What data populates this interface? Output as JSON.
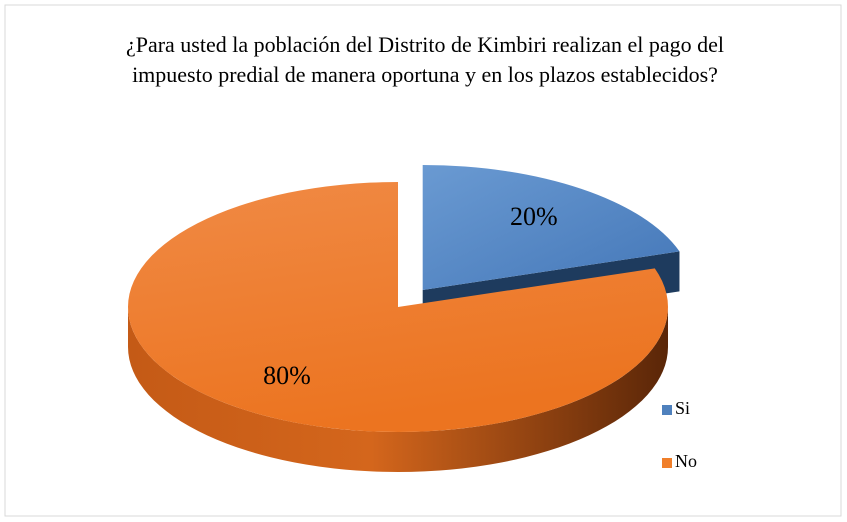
{
  "chart_data": {
    "type": "pie3d",
    "title": "¿Para usted la población del Distrito de Kimbiri realizan el pago del impuesto predial de manera oportuna y en los plazos establecidos?",
    "categories": [
      "Si",
      "No"
    ],
    "values": [
      20,
      80
    ],
    "value_labels": [
      "20%",
      "80%"
    ],
    "colors": [
      "#4f81bd",
      "#f07f2a"
    ],
    "legend": "right"
  }
}
